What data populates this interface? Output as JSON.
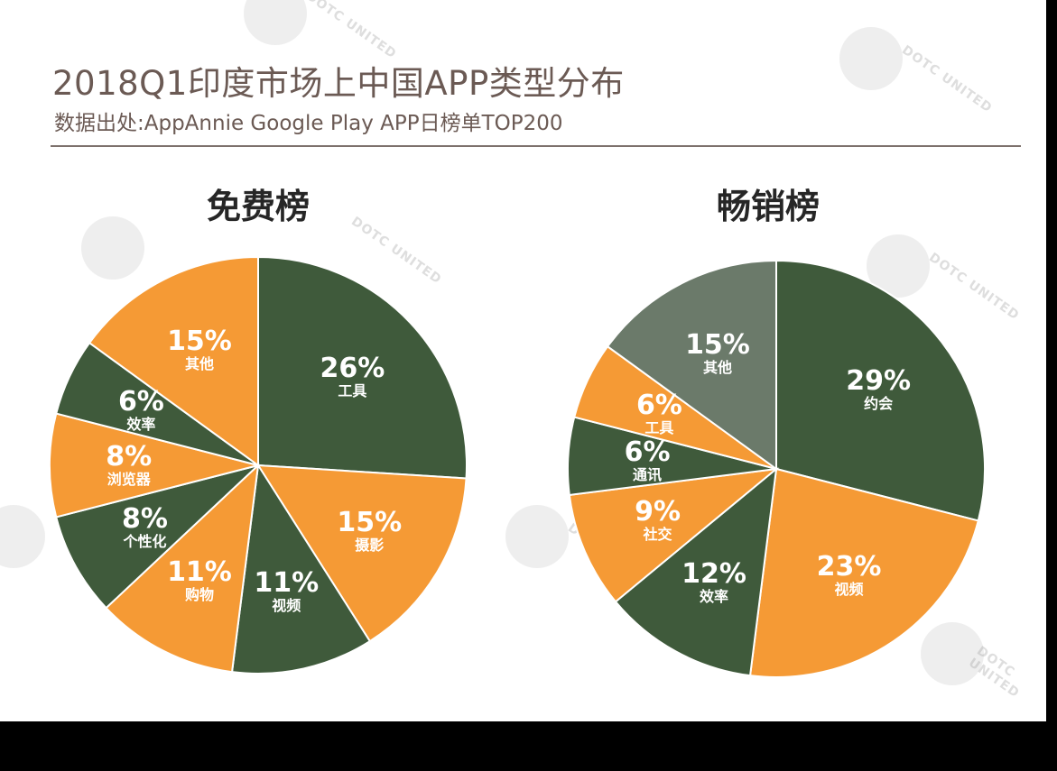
{
  "title": "2018Q1印度市场上中国APP类型分布",
  "subtitle": "数据出处:AppAnnie Google Play APP日榜单TOP200",
  "colors": {
    "dark_green": "#3f5a3b",
    "orange": "#f59a35",
    "gray_green": "#6b7a6a",
    "title_text": "#6b5a54"
  },
  "watermark": "DOTC UNITED",
  "chart_data": [
    {
      "type": "pie",
      "title": "免费榜",
      "slices": [
        {
          "label": "工具",
          "value": 26,
          "display": "26%",
          "color": "#3f5a3b"
        },
        {
          "label": "摄影",
          "value": 15,
          "display": "15%",
          "color": "#f59a35"
        },
        {
          "label": "视频",
          "value": 11,
          "display": "11%",
          "color": "#3f5a3b"
        },
        {
          "label": "购物",
          "value": 11,
          "display": "11%",
          "color": "#f59a35"
        },
        {
          "label": "个性化",
          "value": 8,
          "display": "8%",
          "color": "#3f5a3b"
        },
        {
          "label": "浏览器",
          "value": 8,
          "display": "8%",
          "color": "#f59a35"
        },
        {
          "label": "效率",
          "value": 6,
          "display": "6%",
          "color": "#3f5a3b"
        },
        {
          "label": "其他",
          "value": 15,
          "display": "15%",
          "color": "#f59a35"
        }
      ]
    },
    {
      "type": "pie",
      "title": "畅销榜",
      "slices": [
        {
          "label": "约会",
          "value": 29,
          "display": "29%",
          "color": "#3f5a3b"
        },
        {
          "label": "视频",
          "value": 23,
          "display": "23%",
          "color": "#f59a35"
        },
        {
          "label": "效率",
          "value": 12,
          "display": "12%",
          "color": "#3f5a3b"
        },
        {
          "label": "社交",
          "value": 9,
          "display": "9%",
          "color": "#f59a35"
        },
        {
          "label": "通讯",
          "value": 6,
          "display": "6%",
          "color": "#3f5a3b"
        },
        {
          "label": "工具",
          "value": 6,
          "display": "6%",
          "color": "#f59a35"
        },
        {
          "label": "其他",
          "value": 15,
          "display": "15%",
          "color": "#6b7a6a"
        }
      ]
    }
  ]
}
